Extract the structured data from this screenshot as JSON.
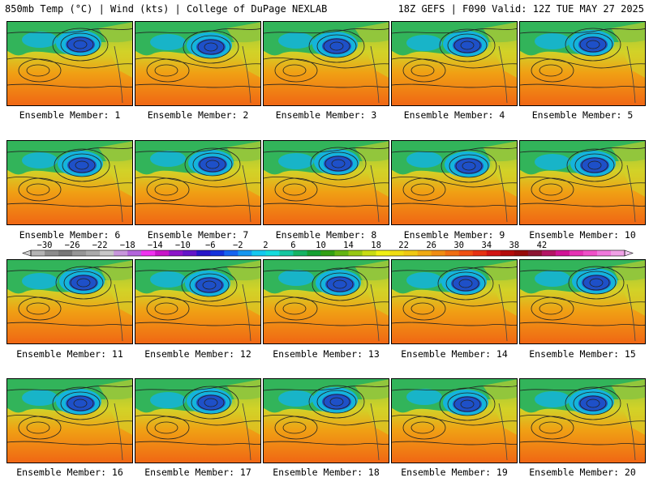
{
  "header": {
    "left": "850mb Temp (°C) | Wind (kts) | College of DuPage NEXLAB",
    "right": "18Z GEFS | F090 Valid: 12Z TUE MAY 27 2025"
  },
  "members": [
    "Ensemble Member: 1",
    "Ensemble Member: 2",
    "Ensemble Member: 3",
    "Ensemble Member: 4",
    "Ensemble Member: 5",
    "Ensemble Member: 6",
    "Ensemble Member: 7",
    "Ensemble Member: 8",
    "Ensemble Member: 9",
    "Ensemble Member: 10",
    "Ensemble Member: 11",
    "Ensemble Member: 12",
    "Ensemble Member: 13",
    "Ensemble Member: 14",
    "Ensemble Member: 15",
    "Ensemble Member: 16",
    "Ensemble Member: 17",
    "Ensemble Member: 18",
    "Ensemble Member: 19",
    "Ensemble Member: 20"
  ],
  "colorbar": {
    "tick_labels": [
      "−30",
      "−26",
      "−22",
      "−18",
      "−14",
      "−10",
      "−6",
      "−2",
      "2",
      "6",
      "10",
      "14",
      "18",
      "22",
      "26",
      "30",
      "34",
      "38",
      "42"
    ],
    "colors": [
      "#b4b4b4",
      "#8c8c8c",
      "#787878",
      "#969696",
      "#aaaaaa",
      "#c8c8c8",
      "#c896dc",
      "#b464dc",
      "#f032f0",
      "#c814c8",
      "#8c14c8",
      "#6414c8",
      "#2814c8",
      "#1432dc",
      "#1464f0",
      "#1496f0",
      "#14c8f0",
      "#14dcdc",
      "#14c8a0",
      "#14b464",
      "#14a032",
      "#32a014",
      "#64b414",
      "#96c814",
      "#c8dc14",
      "#f0f014",
      "#f0dc14",
      "#f0c814",
      "#f0aa14",
      "#f08c14",
      "#f06e14",
      "#f05014",
      "#e63214",
      "#d21414",
      "#b40a0a",
      "#960a0a",
      "#8c1432",
      "#b41464",
      "#d21496",
      "#e632b4",
      "#f050c8",
      "#f078dc",
      "#f0a0e6"
    ]
  },
  "map_colors": {
    "cold": "#1e50c8",
    "cool": "#14b4dc",
    "mild": "#32b45a",
    "warm": "#d2d228",
    "hot": "#f0a014",
    "hottest": "#f06414"
  }
}
